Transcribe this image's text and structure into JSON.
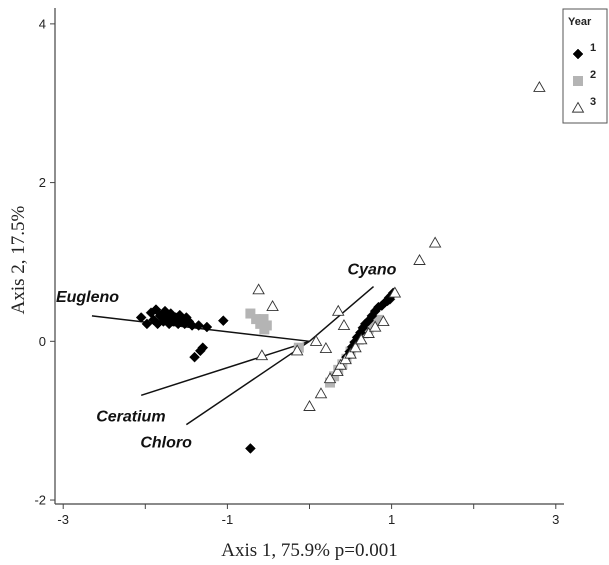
{
  "chart_data": {
    "type": "scatter",
    "xlabel": "Axis 1, 75.9% p=0.001",
    "ylabel": "Axis 2, 17.5%",
    "xlim": [
      -3.1,
      3.1
    ],
    "ylim": [
      -2.05,
      4.2
    ],
    "x_ticks": [
      -3,
      -2,
      -1,
      0,
      1,
      2,
      3
    ],
    "x_tick_labels": [
      "-3",
      "",
      "-1",
      "",
      "1",
      "",
      "3"
    ],
    "y_ticks": [
      -2,
      0,
      2,
      4
    ],
    "y_tick_labels": [
      "-2",
      "0",
      "2",
      "4"
    ],
    "grid": false,
    "legend": {
      "title": "Year",
      "position": "top-right"
    },
    "vectors": [
      {
        "label": "Eugleno",
        "x": -2.65,
        "y": 0.32
      },
      {
        "label": "Ceratium",
        "x": -2.05,
        "y": -0.68
      },
      {
        "label": "Chloro",
        "x": -1.5,
        "y": -1.05
      },
      {
        "label": "Cyano",
        "x": 0.78,
        "y": 0.69
      }
    ],
    "series": [
      {
        "name": "1",
        "marker": "diamond",
        "color": "#000000",
        "points": [
          [
            -2.05,
            0.3
          ],
          [
            -1.98,
            0.22
          ],
          [
            -1.93,
            0.36
          ],
          [
            -1.9,
            0.27
          ],
          [
            -1.87,
            0.4
          ],
          [
            -1.85,
            0.22
          ],
          [
            -1.82,
            0.32
          ],
          [
            -1.78,
            0.25
          ],
          [
            -1.76,
            0.38
          ],
          [
            -1.73,
            0.29
          ],
          [
            -1.71,
            0.22
          ],
          [
            -1.69,
            0.35
          ],
          [
            -1.66,
            0.25
          ],
          [
            -1.63,
            0.3
          ],
          [
            -1.6,
            0.22
          ],
          [
            -1.58,
            0.33
          ],
          [
            -1.55,
            0.28
          ],
          [
            -1.52,
            0.22
          ],
          [
            -1.5,
            0.3
          ],
          [
            -1.47,
            0.25
          ],
          [
            -1.43,
            0.2
          ],
          [
            -1.35,
            0.2
          ],
          [
            -1.25,
            0.18
          ],
          [
            -1.05,
            0.26
          ],
          [
            -1.4,
            -0.2
          ],
          [
            -1.33,
            -0.12
          ],
          [
            -1.3,
            -0.08
          ],
          [
            -0.72,
            -1.35
          ],
          [
            0.45,
            -0.2
          ],
          [
            0.49,
            -0.13
          ],
          [
            0.52,
            -0.07
          ],
          [
            0.55,
            -0.01
          ],
          [
            0.58,
            0.05
          ],
          [
            0.62,
            0.11
          ],
          [
            0.65,
            0.17
          ],
          [
            0.68,
            0.22
          ],
          [
            0.72,
            0.26
          ],
          [
            0.76,
            0.32
          ],
          [
            0.8,
            0.38
          ],
          [
            0.84,
            0.43
          ],
          [
            0.88,
            0.45
          ],
          [
            0.92,
            0.49
          ],
          [
            0.95,
            0.51
          ],
          [
            0.97,
            0.55
          ],
          [
            1.0,
            0.58
          ],
          [
            1.02,
            0.61
          ],
          [
            0.98,
            0.53
          ]
        ]
      },
      {
        "name": "2",
        "marker": "square",
        "color": "#b4b4b4",
        "points": [
          [
            -0.72,
            0.35
          ],
          [
            -0.65,
            0.28
          ],
          [
            -0.6,
            0.22
          ],
          [
            -0.56,
            0.28
          ],
          [
            -0.52,
            0.2
          ],
          [
            -0.55,
            0.15
          ],
          [
            -0.13,
            -0.08
          ],
          [
            0.25,
            -0.52
          ],
          [
            0.3,
            -0.44
          ],
          [
            0.35,
            -0.36
          ],
          [
            0.4,
            -0.29
          ],
          [
            0.45,
            -0.22
          ],
          [
            0.5,
            -0.13
          ],
          [
            0.55,
            -0.06
          ],
          [
            0.6,
            0.02
          ],
          [
            0.66,
            0.1
          ],
          [
            0.72,
            0.16
          ],
          [
            0.78,
            0.22
          ],
          [
            0.84,
            0.27
          ]
        ]
      },
      {
        "name": "3",
        "marker": "triangle",
        "color": "#ffffff",
        "points": [
          [
            2.8,
            3.2
          ],
          [
            1.53,
            1.24
          ],
          [
            1.34,
            1.02
          ],
          [
            1.04,
            0.61
          ],
          [
            -0.62,
            0.65
          ],
          [
            -0.45,
            0.44
          ],
          [
            0.35,
            0.38
          ],
          [
            -0.58,
            -0.18
          ],
          [
            -0.15,
            -0.12
          ],
          [
            0.08,
            0.0
          ],
          [
            0.2,
            -0.09
          ],
          [
            0.42,
            0.2
          ],
          [
            0.0,
            -0.82
          ],
          [
            0.14,
            -0.66
          ],
          [
            0.25,
            -0.47
          ],
          [
            0.34,
            -0.38
          ],
          [
            0.38,
            -0.3
          ],
          [
            0.44,
            -0.23
          ],
          [
            0.5,
            -0.16
          ],
          [
            0.56,
            -0.08
          ],
          [
            0.63,
            0.02
          ],
          [
            0.72,
            0.1
          ],
          [
            0.8,
            0.18
          ],
          [
            0.9,
            0.25
          ]
        ]
      }
    ]
  }
}
